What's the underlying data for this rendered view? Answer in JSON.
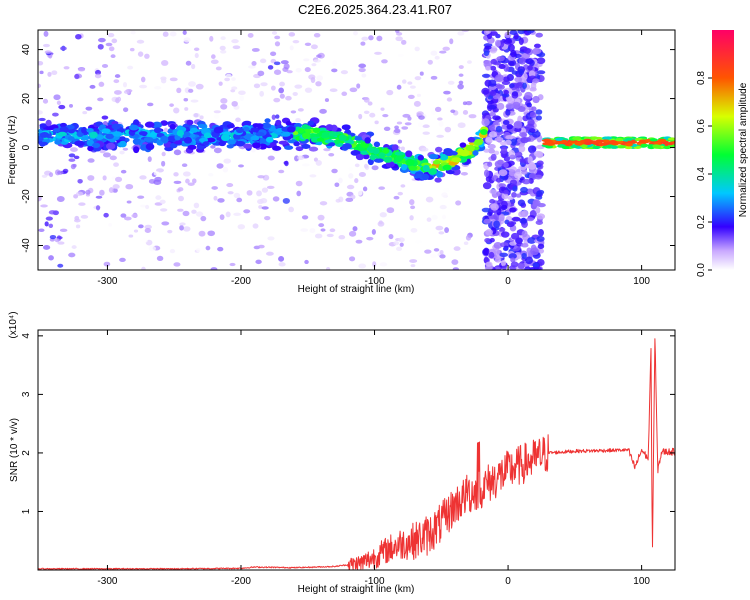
{
  "title": "C2E6.2025.364.23.41.R07",
  "chart_data": [
    {
      "type": "heatmap",
      "xlabel": "Height of straight line (km)",
      "ylabel": "Frequency (Hz)",
      "xlim": [
        -352,
        125
      ],
      "ylim": [
        -50,
        48
      ],
      "x_ticks": [
        -300,
        -200,
        -100,
        0,
        100
      ],
      "y_ticks": [
        -40,
        -20,
        0,
        20,
        40
      ],
      "colorbar": {
        "label": "Normalized spectral amplitude",
        "range": [
          0.0,
          1.0
        ],
        "ticks": [
          0.0,
          0.2,
          0.4,
          0.6,
          0.8
        ],
        "tick_labels": [
          "0.0",
          "0.2",
          "0.4",
          "0.6",
          "0.8"
        ]
      },
      "ridge": [
        {
          "x": -350,
          "y": 5
        },
        {
          "x": -300,
          "y": 5
        },
        {
          "x": -250,
          "y": 5
        },
        {
          "x": -200,
          "y": 5
        },
        {
          "x": -150,
          "y": 6
        },
        {
          "x": -120,
          "y": 3
        },
        {
          "x": -100,
          "y": -2
        },
        {
          "x": -80,
          "y": -5
        },
        {
          "x": -60,
          "y": -8
        },
        {
          "x": -40,
          "y": -5
        },
        {
          "x": -25,
          "y": 0
        },
        {
          "x": -15,
          "y": 8
        },
        {
          "x": 30,
          "y": 2
        },
        {
          "x": 60,
          "y": 2
        },
        {
          "x": 90,
          "y": 2
        },
        {
          "x": 125,
          "y": 2
        }
      ],
      "broadband_bursts_x": [
        [
          -17,
          25
        ]
      ],
      "grid": false
    },
    {
      "type": "line",
      "xlabel": "Height of straight line (km)",
      "ylabel": "SNR (10 * v/v)",
      "y_scale_label": "(x10⁴)",
      "xlim": [
        -352,
        125
      ],
      "ylim": [
        0,
        4.1
      ],
      "x_ticks": [
        -300,
        -200,
        -100,
        0,
        100
      ],
      "y_ticks": [
        1,
        2,
        3,
        4
      ],
      "series": [
        {
          "color": "#ee3333",
          "points": [
            [
              -352,
              0.02
            ],
            [
              -300,
              0.02
            ],
            [
              -250,
              0.02
            ],
            [
              -200,
              0.03
            ],
            [
              -190,
              0.05
            ],
            [
              -160,
              0.04
            ],
            [
              -130,
              0.06
            ],
            [
              -110,
              0.12
            ],
            [
              -100,
              0.22
            ],
            [
              -90,
              0.35
            ],
            [
              -80,
              0.45
            ],
            [
              -70,
              0.5
            ],
            [
              -60,
              0.6
            ],
            [
              -50,
              0.8
            ],
            [
              -40,
              1.1
            ],
            [
              -30,
              1.3
            ],
            [
              -20,
              1.4
            ],
            [
              -10,
              1.55
            ],
            [
              0,
              1.7
            ],
            [
              10,
              1.8
            ],
            [
              20,
              1.9
            ],
            [
              30,
              2.0
            ],
            [
              50,
              2.03
            ],
            [
              70,
              2.04
            ],
            [
              90,
              2.05
            ],
            [
              95,
              1.75
            ],
            [
              100,
              2.05
            ],
            [
              105,
              1.9
            ],
            [
              107,
              3.8
            ],
            [
              108,
              0.2
            ],
            [
              110,
              4.0
            ],
            [
              112,
              1.7
            ],
            [
              115,
              2.02
            ],
            [
              125,
              2.02
            ]
          ]
        }
      ],
      "grid": false
    }
  ]
}
